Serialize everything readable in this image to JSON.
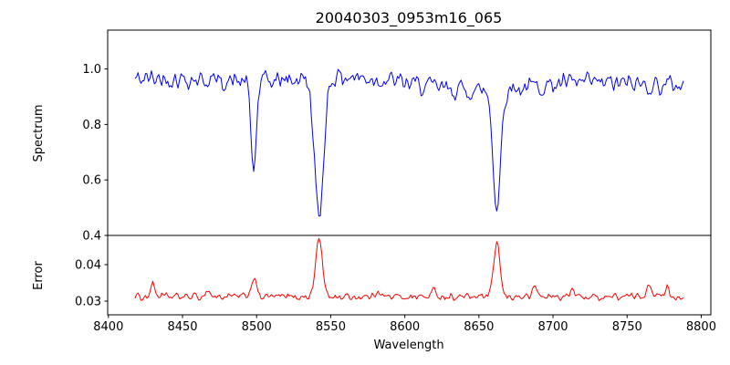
{
  "chart_data": {
    "type": "line",
    "title": "20040303_0953m16_065",
    "xlabel": "Wavelength",
    "xlim": [
      8399.5,
      8806.5
    ],
    "xticks": [
      {
        "value": 8400,
        "label": "8400"
      },
      {
        "value": 8450,
        "label": "8450"
      },
      {
        "value": 8500,
        "label": "8500"
      },
      {
        "value": 8550,
        "label": "8550"
      },
      {
        "value": 8600,
        "label": "8600"
      },
      {
        "value": 8650,
        "label": "8650"
      },
      {
        "value": 8700,
        "label": "8700"
      },
      {
        "value": 8750,
        "label": "8750"
      },
      {
        "value": 8800,
        "label": "8800"
      }
    ],
    "panels": [
      {
        "name": "spectrum",
        "ylabel": "Spectrum",
        "color": "#0000ff",
        "ylim": [
          0.4,
          1.14
        ],
        "yticks": [
          {
            "value": 1.0,
            "label": "1.0"
          },
          {
            "value": 0.8,
            "label": "0.8"
          },
          {
            "value": 0.6,
            "label": "0.6"
          },
          {
            "value": 0.4,
            "label": "0.4"
          }
        ],
        "series_spec": {
          "seed": 42,
          "x_start": 8418,
          "x_end": 8788,
          "step": 1,
          "baseline": 0.95,
          "noise_amp": 0.042,
          "wave_amp": 0.018,
          "clip_min": 0.43,
          "clip_max": 1.135,
          "features": [
            {
              "center": 8498.0,
              "amplitude": -0.32,
              "sigma": 1.8
            },
            {
              "center": 8542.1,
              "amplitude": -0.51,
              "sigma": 3.0
            },
            {
              "center": 8662.1,
              "amplitude": -0.43,
              "sigma": 2.5
            }
          ]
        }
      },
      {
        "name": "error",
        "ylabel": "Error",
        "color": "#ff0000",
        "ylim": [
          0.02625,
          0.048
        ],
        "yticks": [
          {
            "value": 0.04,
            "label": "0.04"
          },
          {
            "value": 0.03,
            "label": "0.03"
          }
        ],
        "series_spec": {
          "seed": 1234,
          "x_start": 8418,
          "x_end": 8788,
          "step": 1,
          "baseline": 0.0312,
          "noise_amp": 0.0012,
          "wave_amp": 0,
          "clip_min": 0.0288,
          "clip_max": 0.0478,
          "features": [
            {
              "center": 8430.0,
              "amplitude": 0.0035,
              "sigma": 1.5
            },
            {
              "center": 8467.0,
              "amplitude": 0.0018,
              "sigma": 1.5
            },
            {
              "center": 8498.0,
              "amplitude": 0.005,
              "sigma": 1.8
            },
            {
              "center": 8542.1,
              "amplitude": 0.0163,
              "sigma": 2.2
            },
            {
              "center": 8582.0,
              "amplitude": 0.002,
              "sigma": 1.5
            },
            {
              "center": 8620.0,
              "amplitude": 0.0018,
              "sigma": 1.5
            },
            {
              "center": 8662.1,
              "amplitude": 0.0152,
              "sigma": 2.0
            },
            {
              "center": 8688.0,
              "amplitude": 0.0028,
              "sigma": 1.5
            },
            {
              "center": 8713.0,
              "amplitude": 0.0018,
              "sigma": 1.5
            },
            {
              "center": 8765.0,
              "amplitude": 0.0038,
              "sigma": 1.8
            },
            {
              "center": 8777.0,
              "amplitude": 0.0028,
              "sigma": 1.5
            }
          ]
        }
      }
    ]
  }
}
